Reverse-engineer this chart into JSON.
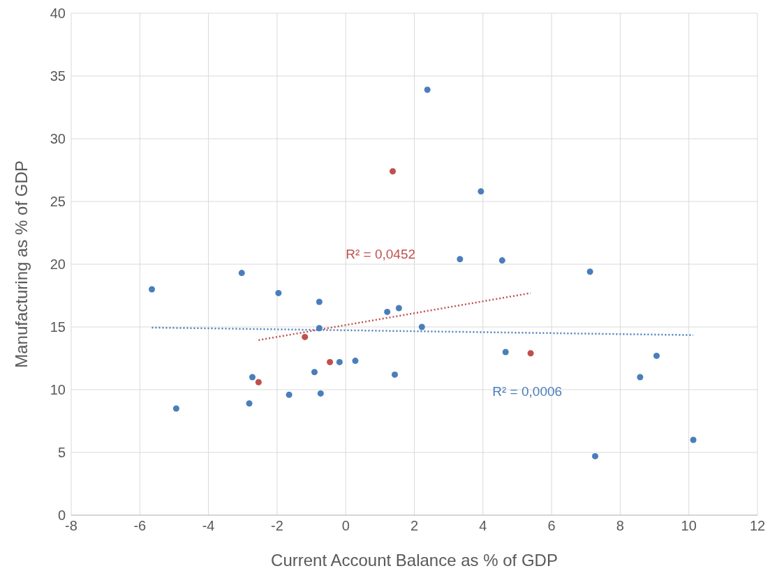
{
  "chart_data": {
    "type": "scatter",
    "xlabel": "Current Account Balance as % of GDP",
    "ylabel": "Manufacturing as % of GDP",
    "xlim": [
      -8,
      12
    ],
    "xticks": [
      -8,
      -6,
      -4,
      -2,
      0,
      2,
      4,
      6,
      8,
      10,
      12
    ],
    "ylim": [
      0,
      40
    ],
    "yticks": [
      0,
      5,
      10,
      15,
      20,
      25,
      30,
      35,
      40
    ],
    "grid": true,
    "marker": "circle",
    "series": [
      {
        "type": "scatter",
        "color": "#4a7ebb",
        "x": [
          -5.65,
          -4.94,
          -3.03,
          -2.72,
          -2.81,
          -1.96,
          -1.65,
          -0.91,
          -0.77,
          -0.77,
          -0.73,
          -0.18,
          0.28,
          1.21,
          1.43,
          1.55,
          2.22,
          2.38,
          3.33,
          3.94,
          4.56,
          4.66,
          7.12,
          7.27,
          8.58,
          9.06,
          10.13
        ],
        "values": [
          18.0,
          8.5,
          19.3,
          11.0,
          8.9,
          17.7,
          9.6,
          11.4,
          17.0,
          14.9,
          9.7,
          12.2,
          12.3,
          16.2,
          11.2,
          16.5,
          15.0,
          33.9,
          20.4,
          25.8,
          20.3,
          13.0,
          19.4,
          4.7,
          11.0,
          12.7,
          6.0
        ]
      },
      {
        "type": "scatter",
        "color": "#c0504d",
        "x": [
          1.37,
          -1.19,
          -2.54,
          -0.46,
          5.39
        ],
        "values": [
          27.4,
          14.2,
          10.6,
          12.2,
          12.9
        ]
      },
      {
        "type": "line",
        "color": "#4a7ebb",
        "line_style": "dotted",
        "marker": "none",
        "x": [
          -5.65,
          10.13
        ],
        "values": [
          14.95,
          14.35
        ]
      },
      {
        "type": "line",
        "color": "#c0504d",
        "line_style": "dotted",
        "marker": "none",
        "x": [
          -2.54,
          5.39
        ],
        "values": [
          13.95,
          17.7
        ]
      }
    ],
    "annotations": [
      "R² = 0,0006",
      "R² = 0,0452"
    ]
  }
}
